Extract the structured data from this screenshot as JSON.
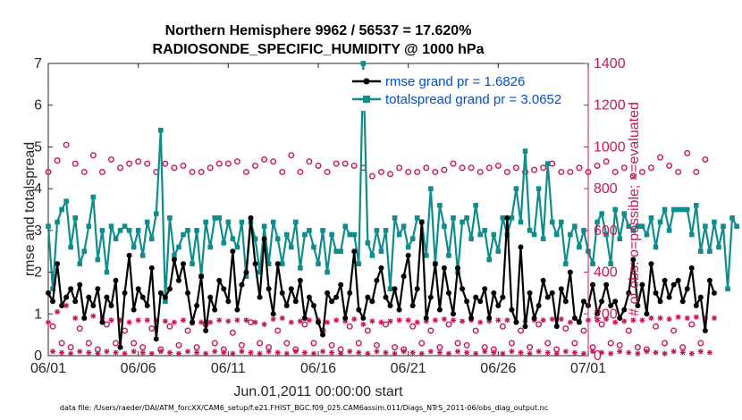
{
  "chart_data": {
    "type": "line",
    "title": "Northern Hemisphere 9962 / 56537 = 17.620%",
    "subtitle": "RADIOSONDE_SPECIFIC_HUMIDITY @ 1000 hPa",
    "xlabel": "Jun.01,2011 00:00:00 start",
    "ylabel": "rmse and totalspread",
    "ylabel_right": "# of obs: o=possible; ×=evaluated",
    "footnote": "data file: /Users/raeder/DAI/ATM_forcXX/CAM6_setup/f.e21.FHIST_BGC.f09_025.CAM6assim.011/Diags_NTrS_2011-06/obs_diag_output.nc",
    "x_ticks": [
      "06/01",
      "06/06",
      "06/11",
      "06/16",
      "06/21",
      "06/26",
      "07/01"
    ],
    "x_range_days": [
      0,
      30
    ],
    "ylim": [
      0,
      7
    ],
    "y_ticks": [
      0,
      1,
      2,
      3,
      4,
      5,
      6,
      7
    ],
    "ylim_right": [
      0,
      1400
    ],
    "y_ticks_right": [
      0,
      200,
      400,
      600,
      800,
      1000,
      1200,
      1400
    ],
    "grid": false,
    "legend_position": "top-right",
    "x_step_days": 0.25,
    "series": [
      {
        "name": "rmse grand pr = 1.6826",
        "color": "#000000",
        "axis": "left",
        "values": [
          1.5,
          1.3,
          2.2,
          1.2,
          1.4,
          1.6,
          1.3,
          1.7,
          0.9,
          1.4,
          1.2,
          1.6,
          0.8,
          1.4,
          1.2,
          1.8,
          0.2,
          1.5,
          2.4,
          1.1,
          1.6,
          1.4,
          1.2,
          2.1,
          0.4,
          1.5,
          1.4,
          1.6,
          2.3,
          1.8,
          2.2,
          1.5,
          0.8,
          1.2,
          1.9,
          0.6,
          1.4,
          1.1,
          1.8,
          1.6,
          1.3,
          2.5,
          1.1,
          1.7,
          2.0,
          3.3,
          2.2,
          1.4,
          2.8,
          1.6,
          1.0,
          2.2,
          1.5,
          1.2,
          1.6,
          1.3,
          1.8,
          0.9,
          1.4,
          1.2,
          0.8,
          0.5,
          1.5,
          1.3,
          1.4,
          1.7,
          0.9,
          1.5,
          2.5,
          1.1,
          0.9,
          1.4,
          1.3,
          1.8,
          2.1,
          1.4,
          1.2,
          1.6,
          1.1,
          1.9,
          2.4,
          1.2,
          1.6,
          3.2,
          0.9,
          1.4,
          2.2,
          1.1,
          2.1,
          1.5,
          1.0,
          2.1,
          1.6,
          1.3,
          0.9,
          1.4,
          1.3,
          1.6,
          0.9,
          1.5,
          1.2,
          1.4,
          3.3,
          1.1,
          0.8,
          2.6,
          0.7,
          1.5,
          0.9,
          1.2,
          1.8,
          1.4,
          1.5,
          0.7,
          1.6,
          1.3,
          2.0,
          0.9,
          0.8,
          1.3,
          1.2,
          1.7,
          1.0,
          1.3,
          1.7,
          1.2,
          1.3,
          0.9,
          1.1,
          1.5,
          2.3,
          1.2,
          1.7,
          1.0,
          2.2,
          1.5,
          1.3,
          1.8,
          1.4,
          1.7,
          1.8,
          1.3,
          1.6,
          2.1,
          1.2,
          1.4,
          0.6,
          1.8,
          1.5
        ]
      },
      {
        "name": "totalspread grand pr = 3.0652",
        "color": "#0f8c8c",
        "axis": "left",
        "values": [
          3.1,
          1.6,
          3.2,
          3.5,
          3.7,
          2.6,
          3.3,
          2.2,
          2.5,
          3.1,
          3.8,
          2.3,
          3.0,
          2.0,
          3.1,
          2.8,
          3.0,
          3.1,
          3.0,
          2.6,
          3.0,
          2.4,
          3.2,
          2.8,
          3.4,
          5.4,
          1.3,
          3.3,
          2.4,
          2.6,
          2.9,
          3.0,
          2.2,
          3.0,
          1.9,
          3.2,
          2.6,
          3.3,
          3.3,
          2.7,
          3.2,
          2.8,
          2.6,
          3.2,
          1.9,
          3.2,
          2.8,
          2.0,
          3.1,
          2.2,
          3.2,
          2.8,
          2.2,
          2.9,
          2.6,
          3.2,
          2.1,
          2.9,
          3.0,
          2.6,
          2.2,
          3.0,
          2.0,
          2.9,
          2.5,
          2.5,
          3.1,
          2.9,
          2.9,
          2.2,
          7.0,
          2.7,
          2.4,
          3.0,
          2.5,
          3.0,
          1.6,
          3.3,
          2.9,
          3.1,
          2.6,
          2.8,
          3.3,
          3.2,
          2.4,
          4.0,
          2.2,
          3.6,
          3.1,
          2.4,
          3.3,
          2.0,
          3.2,
          3.3,
          2.8,
          3.6,
          2.9,
          3.0,
          2.3,
          2.9,
          2.5,
          3.3,
          2.9,
          3.3,
          4.0,
          3.2,
          4.9,
          3.0,
          2.9,
          4.0,
          2.8,
          4.6,
          3.2,
          2.9,
          3.2,
          2.2,
          2.9,
          3.1,
          2.6,
          3.0,
          2.5,
          2.2,
          3.2,
          3.4,
          2.9,
          2.2,
          3.5,
          2.8,
          3.4,
          3.1,
          3.0,
          3.1,
          3.1,
          2.9,
          3.3,
          2.6,
          3.2,
          3.5,
          3.0,
          3.5,
          3.5,
          3.5,
          3.5,
          2.9,
          3.6,
          2.5,
          3.1,
          2.5,
          3.2,
          2.6,
          3.1,
          1.6,
          3.3,
          3.1
        ]
      },
      {
        "name": "possible",
        "color": "#c8175d",
        "axis": "right",
        "values": [
          880,
          140,
          935,
          60,
          1010,
          40,
          920,
          130,
          880,
          60,
          960,
          30,
          880,
          150,
          940,
          60,
          900,
          120,
          920,
          60,
          930,
          40,
          920,
          130,
          880,
          30,
          920,
          140,
          900,
          50,
          910,
          120,
          880,
          40,
          880,
          150,
          900,
          60,
          920,
          30,
          920,
          110,
          930,
          50,
          880,
          160,
          910,
          60,
          940,
          40,
          930,
          120,
          880,
          60,
          960,
          30,
          880,
          150,
          930,
          60,
          910,
          120,
          880,
          50,
          920,
          30,
          920,
          140,
          910,
          60,
          900,
          120,
          860,
          50,
          880,
          150,
          870,
          40,
          900,
          30,
          880,
          140,
          880,
          60,
          900,
          120,
          880,
          40,
          890,
          150,
          920,
          60,
          900,
          50,
          900,
          120,
          880,
          40,
          900,
          30,
          910,
          140,
          880,
          60,
          900,
          120,
          880,
          40,
          890,
          150,
          900,
          60,
          920,
          30,
          880,
          130,
          880,
          60,
          900,
          120,
          880,
          40,
          910,
          150,
          930,
          60,
          880,
          50,
          900,
          120,
          860,
          40,
          880,
          30,
          900,
          140,
          950,
          60,
          910,
          120,
          880,
          40,
          970,
          150,
          880,
          60,
          940
        ]
      },
      {
        "name": "evaluated",
        "color": "#c8175d",
        "axis": "right",
        "values": [
          160,
          20,
          210,
          15,
          240,
          10,
          180,
          20,
          180,
          15,
          190,
          10,
          180,
          20,
          170,
          15,
          170,
          10,
          160,
          20,
          170,
          15,
          170,
          10,
          170,
          20,
          165,
          15,
          160,
          10,
          170,
          20,
          155,
          15,
          160,
          10,
          160,
          20,
          170,
          15,
          165,
          10,
          170,
          20,
          170,
          15,
          160,
          10,
          150,
          20,
          175,
          15,
          180,
          10,
          160,
          20,
          165,
          15,
          170,
          10,
          170,
          20,
          160,
          15,
          170,
          10,
          165,
          20,
          175,
          15,
          150,
          10,
          165,
          20,
          160,
          15,
          165,
          10,
          170,
          20,
          170,
          15,
          160,
          10,
          165,
          20,
          170,
          15,
          175,
          10,
          170,
          20,
          165,
          15,
          170,
          10,
          160,
          20,
          165,
          15,
          170,
          10,
          170,
          20,
          160,
          15,
          165,
          10,
          170,
          20,
          170,
          15,
          175,
          10,
          175,
          20,
          160,
          15,
          165,
          10,
          170,
          20,
          170,
          15,
          175,
          10,
          160,
          20,
          165,
          15,
          170,
          10,
          170,
          20,
          180,
          15,
          180,
          10,
          175,
          20,
          185,
          15,
          180,
          10,
          185,
          20,
          180,
          15,
          180
        ]
      }
    ]
  }
}
